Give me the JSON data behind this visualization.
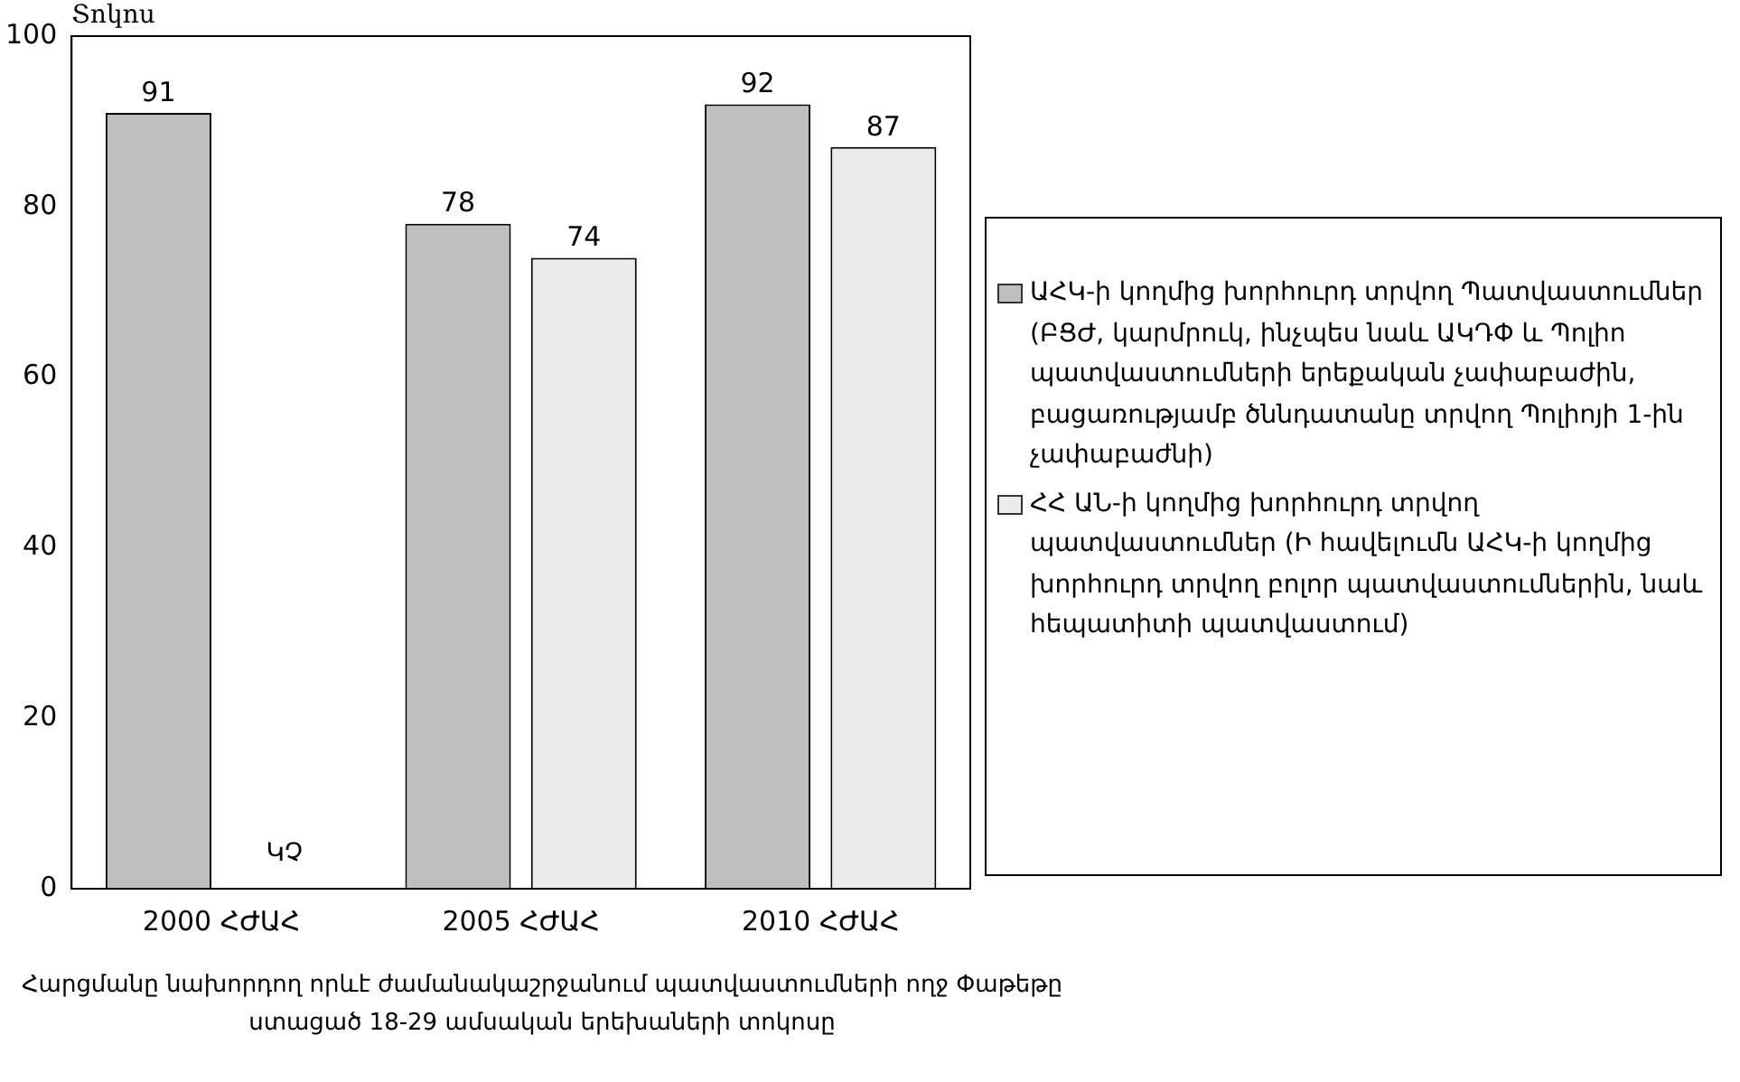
{
  "chart_data": {
    "type": "bar",
    "ylabel": "Տոկոս",
    "xlabel": "Հարցմանը նախորդող որևէ ժամանակաշրջանում պատվաստումների ողջ Փաթեթը ստացած 18-29 ամսական երեխաների տոկոսը",
    "categories": [
      "2000 ՀԺԱՀ",
      "2005 ՀԺԱՀ",
      "2010 ՀԺԱՀ"
    ],
    "series": [
      {
        "name": "ԱՀԿ-ի կողմից խորհուրդ տրվող Պատվաստումներ (ԲՑԺ, կարմրուկ, ինչպես նաև ԱԿԴՓ և Պոլիո պատվաստումների երեքական չափաբաժին, բացառությամբ ծննդատանը տրվող Պոլիոյի 1-ին չափաբաժնի)",
        "color": "#bfbfbf",
        "values": [
          91,
          78,
          92
        ]
      },
      {
        "name": "ՀՀ ԱՆ-ի կողմից խորհուրդ տրվող պատվաստումներ (Ի հավելումն ԱՀԿ-ի կողմից խորհուրդ տրվող բոլոր պատվաստումներին, նաև հեպատիտի պատվաստում)",
        "color": "#ebebeb",
        "values": [
          null,
          74,
          87
        ]
      }
    ],
    "annotations": [
      "ԿՉ"
    ],
    "ylim": [
      0,
      100
    ],
    "yticks": [
      0,
      20,
      40,
      60,
      80,
      100
    ],
    "grid": false,
    "legend": "right",
    "data_labels": true
  }
}
